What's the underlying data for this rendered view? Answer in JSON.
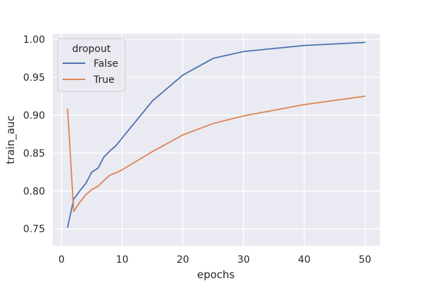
{
  "chart_data": {
    "type": "line",
    "title": "",
    "xlabel": "epochs",
    "ylabel": "train_auc",
    "xlim": [
      -1.45,
      52.45
    ],
    "ylim": [
      0.7275,
      1.0075
    ],
    "xticks": [
      0,
      10,
      20,
      30,
      40,
      50
    ],
    "yticks": [
      0.75,
      0.8,
      0.85,
      0.9,
      0.95,
      1.0
    ],
    "xtick_labels": [
      "0",
      "10",
      "20",
      "30",
      "40",
      "50"
    ],
    "ytick_labels": [
      "0.75",
      "0.80",
      "0.85",
      "0.90",
      "0.95",
      "1.00"
    ],
    "grid": true,
    "legend": {
      "title": "dropout",
      "placement": "top-left"
    },
    "series": [
      {
        "name": "False",
        "color": "#4c72b0",
        "x": [
          1,
          2,
          3,
          4,
          5,
          6,
          7,
          8,
          9,
          10,
          15,
          20,
          25,
          30,
          40,
          50
        ],
        "y": [
          0.752,
          0.789,
          0.8,
          0.81,
          0.825,
          0.83,
          0.845,
          0.853,
          0.86,
          0.87,
          0.919,
          0.953,
          0.975,
          0.984,
          0.992,
          0.996
        ]
      },
      {
        "name": "True",
        "color": "#dd8452",
        "x": [
          1,
          2,
          3,
          4,
          5,
          6,
          7,
          8,
          9,
          10,
          15,
          20,
          25,
          30,
          40,
          50
        ],
        "y": [
          0.908,
          0.773,
          0.785,
          0.795,
          0.802,
          0.806,
          0.814,
          0.821,
          0.824,
          0.828,
          0.852,
          0.874,
          0.889,
          0.899,
          0.914,
          0.925
        ]
      }
    ]
  }
}
